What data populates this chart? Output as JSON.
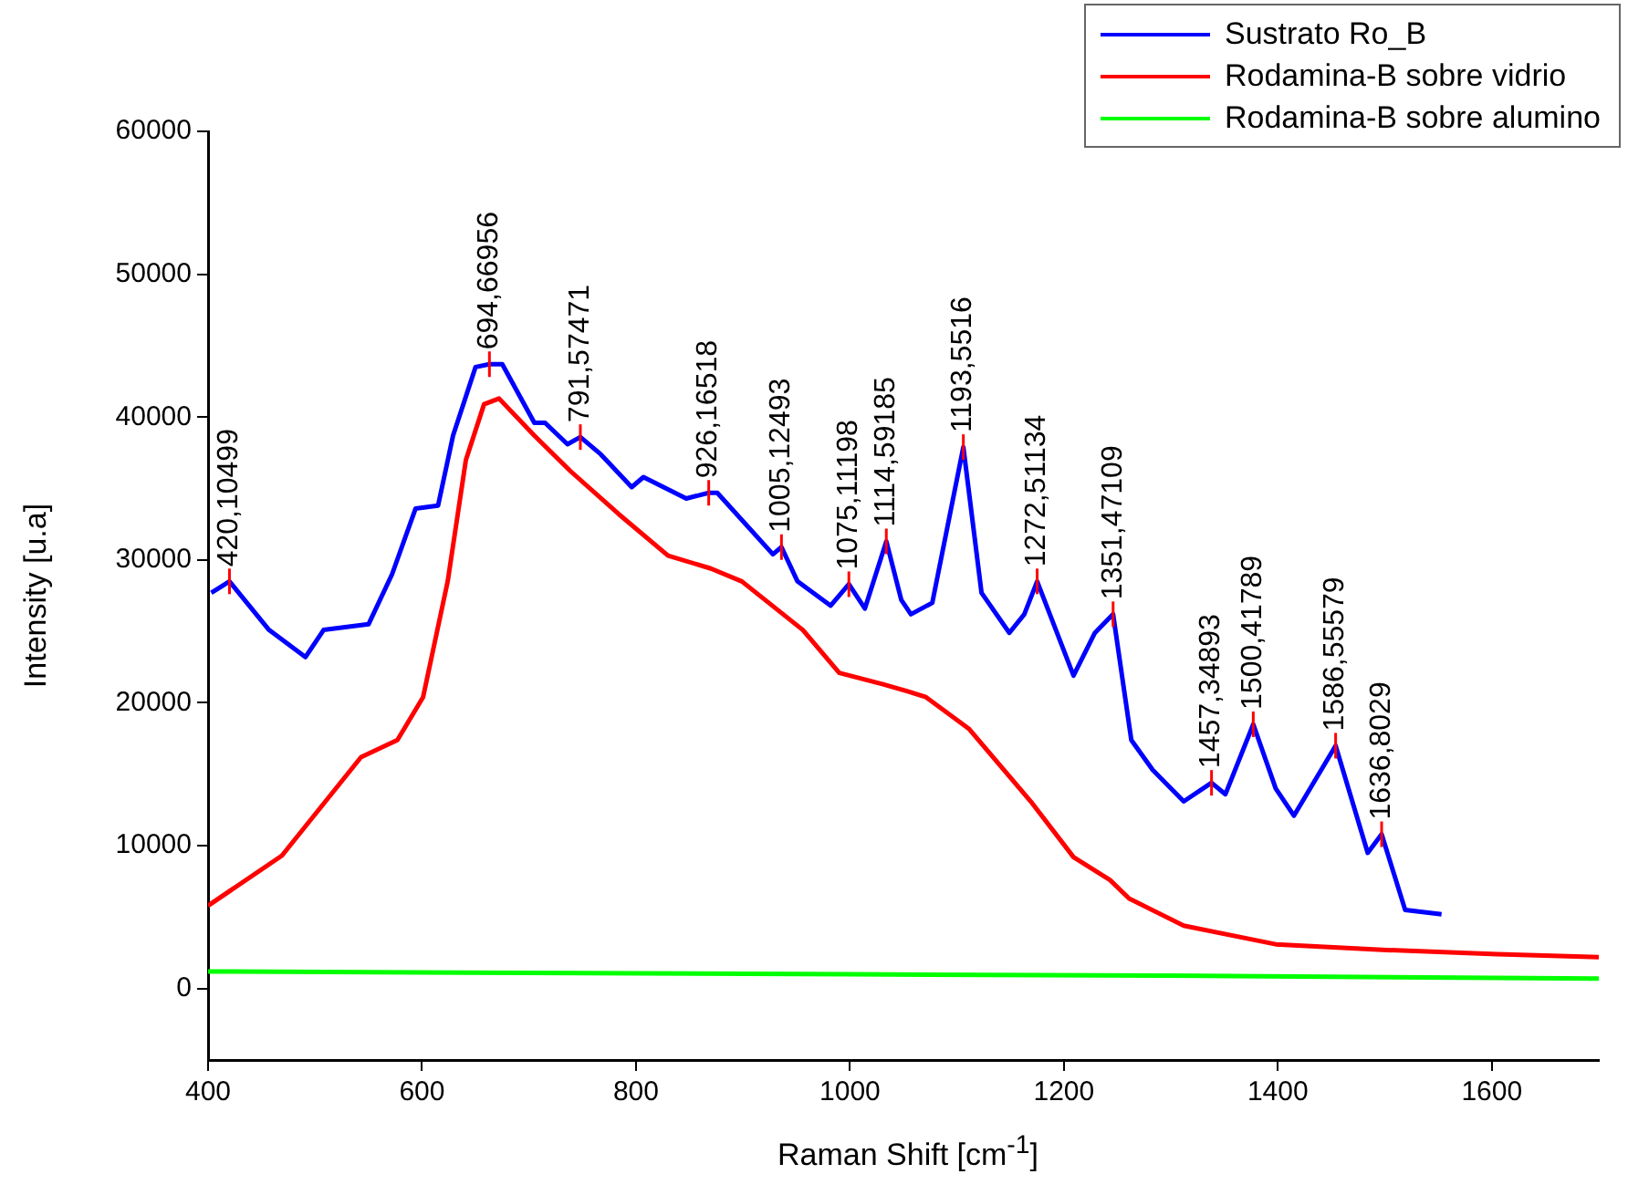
{
  "chart_data": {
    "type": "line",
    "xlabel": "Raman Shift [cm$^{-1}$]",
    "ylabel": "Intensity [u.a]",
    "xlim": [
      400,
      1700
    ],
    "xticks": [
      400,
      600,
      800,
      1000,
      1200,
      1400,
      1600
    ],
    "ylim": [
      -5000,
      60000
    ],
    "yticks": [
      0,
      10000,
      20000,
      30000,
      40000,
      50000,
      60000
    ],
    "grid": false,
    "legend": "top right",
    "marker": "none",
    "line_style": "solid",
    "series": [
      {
        "name": "Sustrato Ro_B",
        "color": "#0000ff",
        "x": [
          403,
          420,
          457,
          491,
          508,
          550,
          572,
          594,
          615,
          629,
          650,
          663,
          675,
          705,
          715,
          736,
          748,
          767,
          796,
          807,
          847,
          868,
          876,
          928,
          936,
          951,
          982,
          999,
          1014,
          1034,
          1048,
          1057,
          1077,
          1106,
          1123,
          1149,
          1163,
          1175,
          1209,
          1229,
          1246,
          1263,
          1283,
          1312,
          1338,
          1351,
          1377,
          1398,
          1415,
          1454,
          1484,
          1497,
          1519,
          1553
        ],
        "values": [
          27700,
          28500,
          25100,
          23200,
          25100,
          25500,
          29000,
          33600,
          33800,
          38700,
          43500,
          43700,
          43700,
          39600,
          39600,
          38100,
          38600,
          37400,
          35100,
          35800,
          34300,
          34700,
          34700,
          30400,
          30900,
          28500,
          26800,
          28300,
          26600,
          31300,
          27200,
          26200,
          27000,
          37900,
          27700,
          24900,
          26200,
          28500,
          21900,
          24900,
          26200,
          17400,
          15300,
          13100,
          14400,
          13600,
          18500,
          14000,
          12100,
          17000,
          9500,
          10800,
          5500,
          5200
        ]
      },
      {
        "name": "Rodamina-B sobre vidrio",
        "color": "#ff0000",
        "x": [
          400,
          469,
          543,
          577,
          601,
          624,
          641,
          658,
          672,
          705,
          739,
          784,
          830,
          870,
          899,
          956,
          990,
          1031,
          1054,
          1071,
          1111,
          1169,
          1209,
          1243,
          1261,
          1312,
          1398,
          1502,
          1605,
          1700
        ],
        "values": [
          5800,
          9300,
          16200,
          17400,
          20400,
          28500,
          37000,
          40900,
          41300,
          38700,
          36200,
          33200,
          30300,
          29400,
          28500,
          25100,
          22100,
          21300,
          20800,
          20400,
          18200,
          13100,
          9200,
          7600,
          6300,
          4400,
          3100,
          2700,
          2400,
          2200
        ]
      },
      {
        "name": "Rodamina-B sobre alumino",
        "color": "#00ff00",
        "x": [
          400,
          700,
          1000,
          1300,
          1700
        ],
        "values": [
          1200,
          1100,
          1000,
          900,
          700
        ]
      }
    ],
    "annotations": [
      {
        "text": "420,10499",
        "x": 420,
        "y": 28500
      },
      {
        "text": "694,66956",
        "x": 663,
        "y": 43700
      },
      {
        "text": "791,57471",
        "x": 748,
        "y": 38600
      },
      {
        "text": "926,16518",
        "x": 868,
        "y": 34700
      },
      {
        "text": "1005,12493",
        "x": 936,
        "y": 30900
      },
      {
        "text": "1075,11198",
        "x": 999,
        "y": 28300
      },
      {
        "text": "1114,59185",
        "x": 1034,
        "y": 31300
      },
      {
        "text": "1193,5516",
        "x": 1106,
        "y": 37900
      },
      {
        "text": "1272,51134",
        "x": 1175,
        "y": 28500
      },
      {
        "text": "1351,47109",
        "x": 1246,
        "y": 26200
      },
      {
        "text": "1457,34893",
        "x": 1338,
        "y": 14400
      },
      {
        "text": "1500,41789",
        "x": 1377,
        "y": 18500
      },
      {
        "text": "1586,55579",
        "x": 1454,
        "y": 17000
      },
      {
        "text": "1636,8029",
        "x": 1497,
        "y": 10800
      }
    ]
  }
}
